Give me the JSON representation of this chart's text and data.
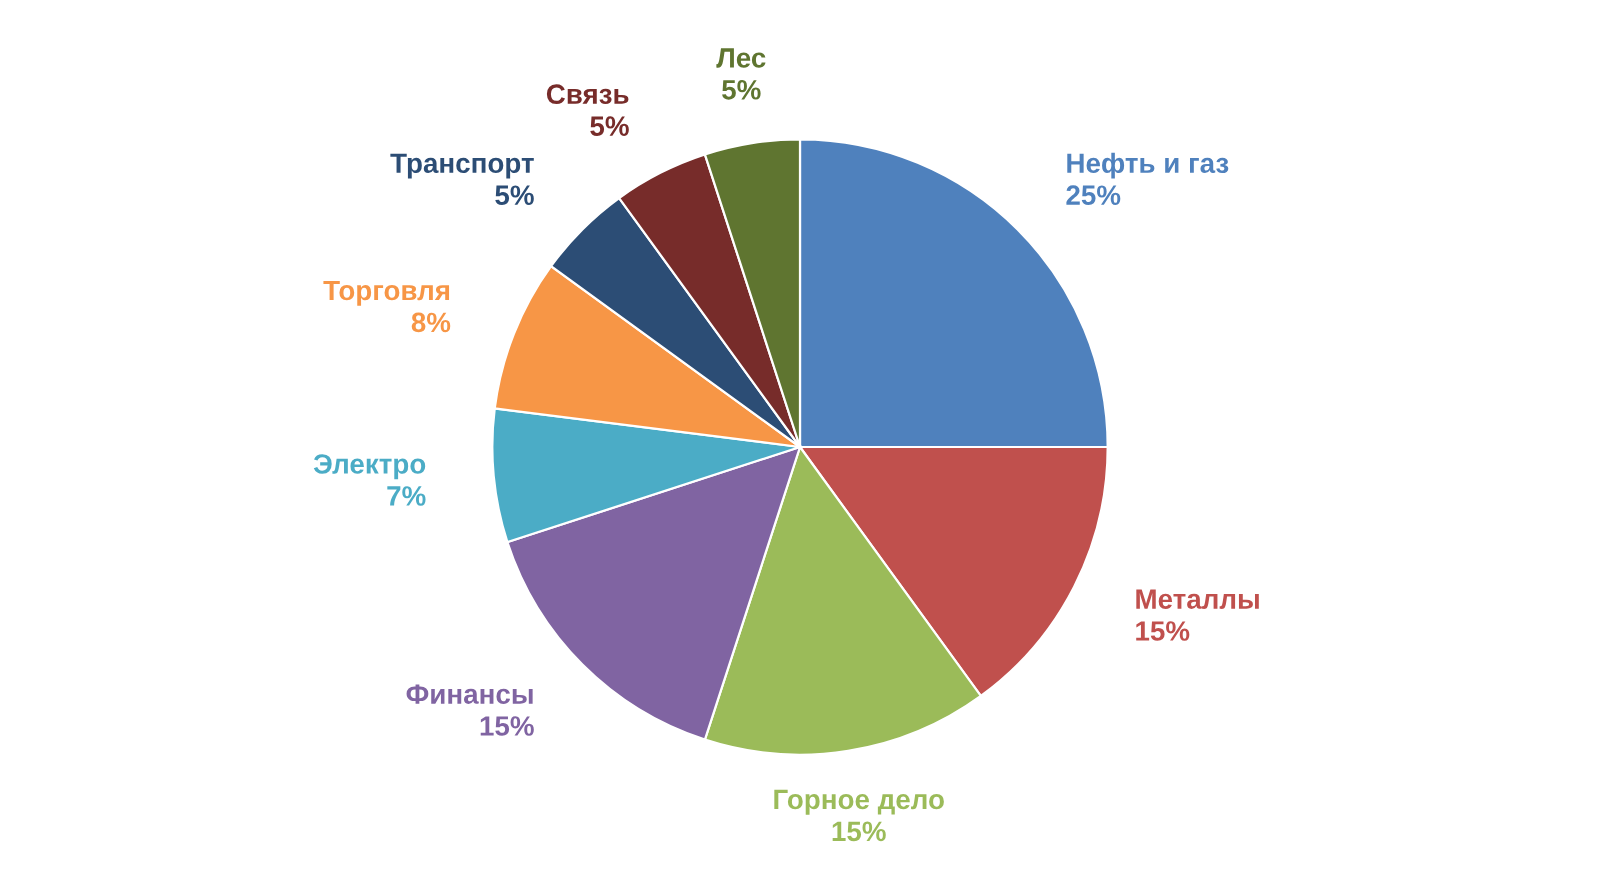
{
  "chart_data": {
    "type": "pie",
    "categories": [
      "Нефть и газ",
      "Металлы",
      "Горное дело",
      "Финансы",
      "Электро",
      "Торговля",
      "Транспорт",
      "Связь",
      "Лес"
    ],
    "values": [
      25,
      15,
      15,
      15,
      7,
      8,
      5,
      5,
      5
    ],
    "colors": [
      "#4f81bd",
      "#c0504d",
      "#9bbb59",
      "#8064a2",
      "#4bacc6",
      "#f79646",
      "#2c4d75",
      "#772c2a",
      "#5f7530"
    ],
    "value_labels": [
      "25%",
      "15%",
      "15%",
      "15%",
      "7%",
      "8%",
      "5%",
      "5%",
      "5%"
    ]
  }
}
